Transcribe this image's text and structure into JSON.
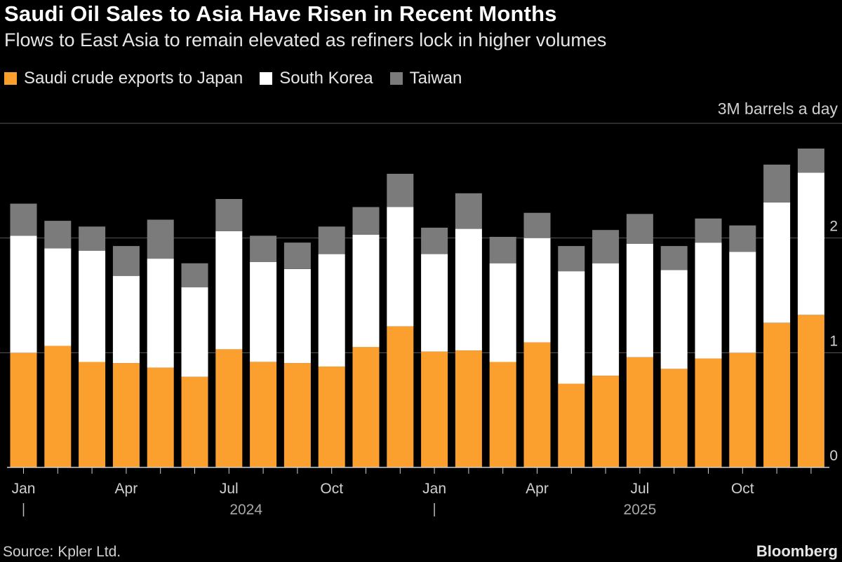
{
  "title": "Saudi Oil Sales to Asia Have Risen in Recent Months",
  "subtitle": "Flows to East Asia to remain elevated as refiners lock in higher volumes",
  "legend": [
    {
      "label": "Saudi crude exports to Japan",
      "color": "#fba02e"
    },
    {
      "label": "South Korea",
      "color": "#ffffff"
    },
    {
      "label": "Taiwan",
      "color": "#7b7b7b"
    }
  ],
  "unit_label": "3M barrels a day",
  "source": "Source: Kpler Ltd.",
  "brand": "Bloomberg",
  "chart_data": {
    "type": "bar",
    "stacked": true,
    "categories": [
      "Jan 2024",
      "Feb 2024",
      "Mar 2024",
      "Apr 2024",
      "May 2024",
      "Jun 2024",
      "Jul 2024",
      "Aug 2024",
      "Sep 2024",
      "Oct 2024",
      "Nov 2024",
      "Dec 2024",
      "Jan 2025",
      "Feb 2025",
      "Mar 2025",
      "Apr 2025",
      "May 2025",
      "Jun 2025",
      "Jul 2025",
      "Aug 2025",
      "Sep 2025",
      "Oct 2025",
      "Nov 2025",
      "Dec 2025"
    ],
    "series": [
      {
        "name": "Saudi crude exports to Japan",
        "color": "#fba02e",
        "values": [
          1.0,
          1.06,
          0.92,
          0.91,
          0.87,
          0.79,
          1.03,
          0.92,
          0.91,
          0.88,
          1.05,
          1.23,
          1.01,
          1.02,
          0.92,
          1.09,
          0.73,
          0.8,
          0.96,
          0.86,
          0.95,
          1.0,
          1.26,
          1.33
        ]
      },
      {
        "name": "South Korea",
        "color": "#ffffff",
        "values": [
          1.02,
          0.85,
          0.97,
          0.76,
          0.95,
          0.78,
          1.03,
          0.87,
          0.82,
          0.98,
          0.98,
          1.04,
          0.85,
          1.06,
          0.86,
          0.91,
          0.98,
          0.98,
          0.99,
          0.86,
          1.01,
          0.88,
          1.05,
          1.24
        ]
      },
      {
        "name": "Taiwan",
        "color": "#7b7b7b",
        "values": [
          0.28,
          0.24,
          0.21,
          0.26,
          0.34,
          0.21,
          0.28,
          0.23,
          0.23,
          0.24,
          0.24,
          0.29,
          0.23,
          0.31,
          0.23,
          0.22,
          0.22,
          0.29,
          0.26,
          0.21,
          0.21,
          0.23,
          0.33,
          0.21
        ]
      }
    ],
    "ylim": [
      0,
      3
    ],
    "yticks": [
      {
        "value": 0,
        "label": "0"
      },
      {
        "value": 1,
        "label": "1"
      },
      {
        "value": 2,
        "label": "2"
      },
      {
        "value": 3,
        "label": "3M barrels a day"
      }
    ],
    "xticks": [
      {
        "index": 0,
        "label": "Jan"
      },
      {
        "index": 3,
        "label": "Apr"
      },
      {
        "index": 6,
        "label": "Jul"
      },
      {
        "index": 9,
        "label": "Oct"
      },
      {
        "index": 12,
        "label": "Jan"
      },
      {
        "index": 15,
        "label": "Apr"
      },
      {
        "index": 18,
        "label": "Jul"
      },
      {
        "index": 21,
        "label": "Oct"
      }
    ],
    "year_labels": [
      {
        "center_index": 6.5,
        "label": "2024"
      },
      {
        "center_index": 18,
        "label": "2025"
      }
    ],
    "year_separators": [
      0,
      12
    ],
    "xlabel": "",
    "ylabel": "3M barrels a day"
  }
}
